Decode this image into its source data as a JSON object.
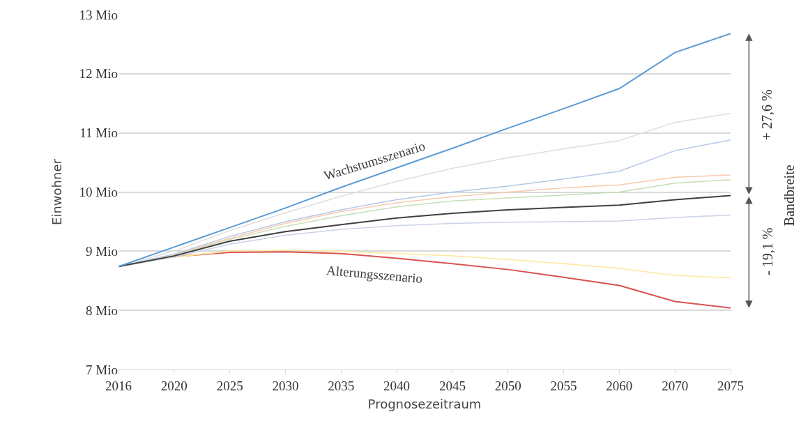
{
  "chart_data": {
    "type": "line",
    "xlabel": "Prognosezeitraum",
    "ylabel": "Einwohner",
    "categories": [
      "2016",
      "2020",
      "2025",
      "2030",
      "2035",
      "2040",
      "2045",
      "2050",
      "2055",
      "2060",
      "2070",
      "2075"
    ],
    "series": [
      {
        "name": "Alterungsszenario",
        "color": "#d9534f",
        "values": [
          8.74,
          8.91,
          8.98,
          8.99,
          8.96,
          8.88,
          8.79,
          8.69,
          8.56,
          8.42,
          8.15,
          8.04
        ]
      },
      {
        "color": "#ffe699",
        "values": [
          8.74,
          8.9,
          9.0,
          9.02,
          9.0,
          8.96,
          8.92,
          8.86,
          8.79,
          8.71,
          8.59,
          8.55
        ]
      },
      {
        "color": "#c9d3e6",
        "values": [
          8.74,
          8.9,
          9.12,
          9.27,
          9.37,
          9.43,
          9.47,
          9.49,
          9.5,
          9.51,
          9.57,
          9.61
        ]
      },
      {
        "color": "#c5e0b4",
        "values": [
          8.74,
          8.93,
          9.2,
          9.42,
          9.6,
          9.75,
          9.85,
          9.9,
          9.95,
          10.0,
          10.15,
          10.21
        ]
      },
      {
        "color": "#f8cbad",
        "values": [
          8.74,
          8.94,
          9.22,
          9.47,
          9.67,
          9.82,
          9.92,
          10.0,
          10.07,
          10.12,
          10.25,
          10.29
        ]
      },
      {
        "color": "#b4c7e7",
        "values": [
          8.74,
          8.95,
          9.25,
          9.5,
          9.7,
          9.87,
          10.0,
          10.1,
          10.22,
          10.35,
          10.7,
          10.88
        ]
      },
      {
        "color": "#dedede",
        "values": [
          8.74,
          9.0,
          9.35,
          9.65,
          9.93,
          10.18,
          10.4,
          10.58,
          10.73,
          10.87,
          11.18,
          11.33
        ]
      },
      {
        "color": "#404040",
        "values": [
          8.74,
          8.92,
          9.17,
          9.33,
          9.45,
          9.56,
          9.64,
          9.7,
          9.74,
          9.78,
          9.87,
          9.94
        ]
      },
      {
        "name": "Wachstumsszenario",
        "color": "#5b9bd5",
        "values": [
          8.74,
          9.07,
          9.4,
          9.73,
          10.08,
          10.41,
          10.74,
          11.08,
          11.41,
          11.75,
          12.36,
          12.68
        ]
      }
    ],
    "ylim": [
      7,
      13
    ],
    "yticks": [
      {
        "value": 7,
        "label": "7 Mio"
      },
      {
        "value": 8,
        "label": "8 Mio"
      },
      {
        "value": 9,
        "label": "9 Mio"
      },
      {
        "value": 10,
        "label": "10 Mio"
      },
      {
        "value": 11,
        "label": "11 Mio"
      },
      {
        "value": 12,
        "label": "12 Mio"
      },
      {
        "value": 13,
        "label": "13 Mio"
      }
    ],
    "grid": "y",
    "legend": false,
    "marker": "none",
    "line_style": "solid",
    "annotations": [
      "+ 27,6 %",
      "- 19,1 %",
      "Bandbreite"
    ]
  }
}
